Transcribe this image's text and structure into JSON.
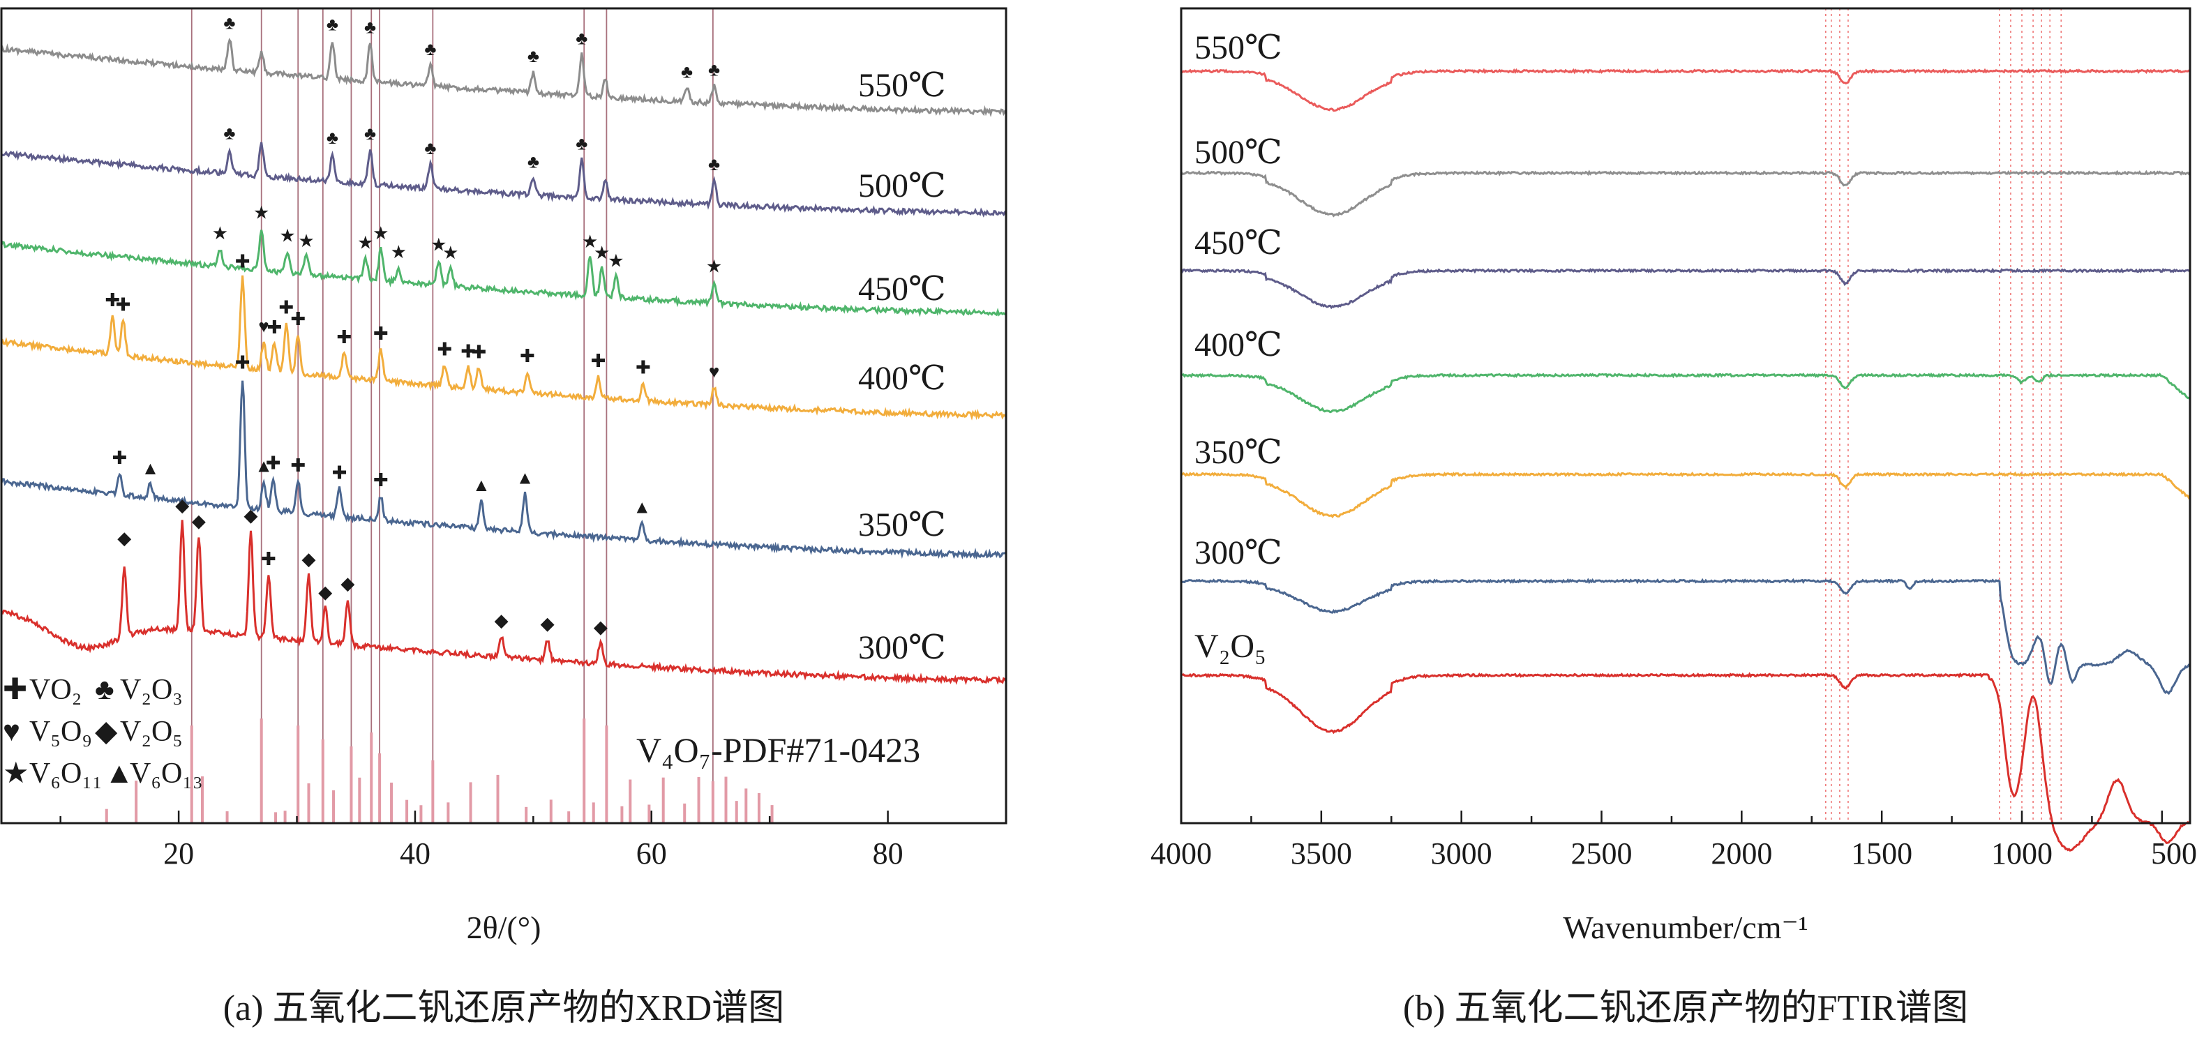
{
  "captions": {
    "a": "(a) 五氧化二钒还原产物的XRD谱图",
    "b": "(b) 五氧化二钒还原产物的FTIR谱图"
  },
  "colors": {
    "550": "#8c8c8c",
    "500": "#5e5c8a",
    "450": "#4fb56b",
    "400": "#f2ad3c",
    "350": "#4a6690",
    "300": "#d9302c",
    "ftir_550": "#ea5b5b",
    "ftir_V2O5": "#d9302c",
    "pdf": "#e29aa6",
    "ref": "#a8707c",
    "band": "#ee7070"
  },
  "legend": {
    "vo2": "VO₂",
    "v2o3": "V₂O₃",
    "v5o9": "V₅O₉",
    "v2o5": "V₂O₅",
    "v6o11": "V₆O₁₁",
    "v6o13": "V₆O₁₃",
    "pdf": "V₄O₇-PDF#71-0423"
  },
  "chart_data": [
    {
      "type": "line",
      "title": "(a) 五氧化二钒还原产物的XRD谱图",
      "xlabel": "2θ/(°)",
      "ylabel": "",
      "xlim": [
        5,
        90
      ],
      "xticks": [
        20,
        40,
        60,
        80
      ],
      "grid": false,
      "reference_pattern": {
        "name": "V₄O₇-PDF#71-0423",
        "positions_2theta": [
          21.1,
          27.0,
          30.1,
          32.2,
          34.6,
          36.3,
          37.0,
          41.5,
          54.3,
          56.2,
          65.2
        ],
        "extra_small_peaks_2theta": [
          13.9,
          16.4,
          22.0,
          24.1,
          28.2,
          29.0,
          31.0,
          33.1,
          35.3,
          38.0,
          39.3,
          40.5,
          42.8,
          44.7,
          47.0,
          49.4,
          51.5,
          53.0,
          55.1,
          57.5,
          58.2,
          59.8,
          61.0,
          62.8,
          64.0,
          66.3,
          67.2,
          68.0,
          69.1,
          70.2
        ]
      },
      "series": [
        {
          "name": "550℃",
          "label": "550℃",
          "peaks_2theta": [
            24.3,
            27.0,
            33.0,
            36.2,
            41.3,
            50.0,
            54.1,
            56.1,
            63.0,
            65.3
          ],
          "markers": [
            {
              "x": 24.3,
              "phase": "V₂O₃",
              "glyph": "♣"
            },
            {
              "x": 33.0,
              "phase": "V₂O₃",
              "glyph": "♣"
            },
            {
              "x": 36.2,
              "phase": "V₂O₃",
              "glyph": "♣"
            },
            {
              "x": 41.3,
              "phase": "V₂O₃",
              "glyph": "♣"
            },
            {
              "x": 50.0,
              "phase": "V₂O₃",
              "glyph": "♣"
            },
            {
              "x": 54.1,
              "phase": "V₂O₃",
              "glyph": "♣"
            },
            {
              "x": 63.0,
              "phase": "V₂O₃",
              "glyph": "♣"
            },
            {
              "x": 65.3,
              "phase": "V₂O₃",
              "glyph": "♣"
            }
          ]
        },
        {
          "name": "500℃",
          "label": "500℃",
          "peaks_2theta": [
            24.3,
            27.0,
            33.0,
            36.2,
            41.3,
            50.0,
            54.1,
            56.1,
            65.3
          ],
          "markers": [
            {
              "x": 24.3,
              "phase": "V₂O₃",
              "glyph": "♣"
            },
            {
              "x": 33.0,
              "phase": "V₂O₃",
              "glyph": "♣"
            },
            {
              "x": 36.2,
              "phase": "V₂O₃",
              "glyph": "♣"
            },
            {
              "x": 41.3,
              "phase": "V₂O₃",
              "glyph": "♣"
            },
            {
              "x": 50.0,
              "phase": "V₂O₃",
              "glyph": "♣"
            },
            {
              "x": 54.1,
              "phase": "V₂O₃",
              "glyph": "♣"
            },
            {
              "x": 65.3,
              "phase": "V₂O₃",
              "glyph": "♣"
            }
          ]
        },
        {
          "name": "450℃",
          "label": "450℃",
          "peaks_2theta": [
            23.5,
            27.0,
            29.2,
            30.8,
            35.8,
            37.1,
            38.6,
            42.0,
            43.0,
            54.8,
            55.8,
            57.0,
            65.3
          ],
          "markers": [
            {
              "x": 23.5,
              "phase": "V₆O₁₁",
              "glyph": "★"
            },
            {
              "x": 27.0,
              "phase": "V₆O₁₁",
              "glyph": "★"
            },
            {
              "x": 29.2,
              "phase": "V₆O₁₁",
              "glyph": "★"
            },
            {
              "x": 30.8,
              "phase": "V₆O₁₁",
              "glyph": "★"
            },
            {
              "x": 35.8,
              "phase": "V₆O₁₁",
              "glyph": "★"
            },
            {
              "x": 37.1,
              "phase": "V₆O₁₁",
              "glyph": "★"
            },
            {
              "x": 38.6,
              "phase": "V₆O₁₁",
              "glyph": "★"
            },
            {
              "x": 42.0,
              "phase": "V₆O₁₁",
              "glyph": "★"
            },
            {
              "x": 43.0,
              "phase": "V₆O₁₁",
              "glyph": "★"
            },
            {
              "x": 54.8,
              "phase": "V₆O₁₁",
              "glyph": "★"
            },
            {
              "x": 55.8,
              "phase": "V₆O₁₁",
              "glyph": "★"
            },
            {
              "x": 57.0,
              "phase": "V₆O₁₁",
              "glyph": "★"
            },
            {
              "x": 65.3,
              "phase": "V₆O₁₁",
              "glyph": "★"
            }
          ]
        },
        {
          "name": "400℃",
          "label": "400℃",
          "peaks_2theta": [
            14.4,
            15.3,
            25.4,
            27.2,
            28.1,
            29.1,
            30.1,
            34.0,
            37.1,
            42.5,
            44.5,
            45.4,
            49.5,
            55.5,
            59.3,
            65.3
          ],
          "markers": [
            {
              "x": 14.4,
              "phase": "VO₂",
              "glyph": "✚"
            },
            {
              "x": 15.3,
              "phase": "VO₂",
              "glyph": "✚"
            },
            {
              "x": 25.4,
              "phase": "VO₂",
              "glyph": "✚"
            },
            {
              "x": 27.2,
              "phase": "V₅O₉",
              "glyph": "♥"
            },
            {
              "x": 28.1,
              "phase": "VO₂",
              "glyph": "✚"
            },
            {
              "x": 29.1,
              "phase": "VO₂",
              "glyph": "✚"
            },
            {
              "x": 30.1,
              "phase": "VO₂",
              "glyph": "✚"
            },
            {
              "x": 34.0,
              "phase": "VO₂",
              "glyph": "✚"
            },
            {
              "x": 37.1,
              "phase": "VO₂",
              "glyph": "✚"
            },
            {
              "x": 42.5,
              "phase": "VO₂",
              "glyph": "✚"
            },
            {
              "x": 44.5,
              "phase": "VO₂",
              "glyph": "✚"
            },
            {
              "x": 45.4,
              "phase": "VO₂",
              "glyph": "✚"
            },
            {
              "x": 49.5,
              "phase": "VO₂",
              "glyph": "✚"
            },
            {
              "x": 55.5,
              "phase": "VO₂",
              "glyph": "✚"
            },
            {
              "x": 59.3,
              "phase": "VO₂",
              "glyph": "✚"
            },
            {
              "x": 65.3,
              "phase": "V₅O₉",
              "glyph": "♥"
            }
          ]
        },
        {
          "name": "350℃",
          "label": "350℃",
          "peaks_2theta": [
            15.0,
            17.6,
            25.4,
            27.2,
            28.0,
            30.1,
            33.6,
            37.1,
            45.6,
            49.3,
            59.2
          ],
          "markers": [
            {
              "x": 15.0,
              "phase": "VO₂",
              "glyph": "✚"
            },
            {
              "x": 17.6,
              "phase": "V₆O₁₃",
              "glyph": "▲"
            },
            {
              "x": 25.4,
              "phase": "VO₂",
              "glyph": "✚"
            },
            {
              "x": 27.2,
              "phase": "V₆O₁₃",
              "glyph": "▲"
            },
            {
              "x": 28.0,
              "phase": "VO₂",
              "glyph": "✚"
            },
            {
              "x": 30.1,
              "phase": "VO₂",
              "glyph": "✚"
            },
            {
              "x": 33.6,
              "phase": "VO₂",
              "glyph": "✚"
            },
            {
              "x": 37.1,
              "phase": "VO₂",
              "glyph": "✚"
            },
            {
              "x": 45.6,
              "phase": "V₆O₁₃",
              "glyph": "▲"
            },
            {
              "x": 49.3,
              "phase": "V₆O₁₃",
              "glyph": "▲"
            },
            {
              "x": 59.2,
              "phase": "V₆O₁₃",
              "glyph": "▲"
            }
          ]
        },
        {
          "name": "300℃",
          "label": "300℃",
          "peaks_2theta": [
            15.4,
            20.3,
            21.7,
            26.1,
            27.6,
            31.0,
            32.4,
            34.3,
            47.3,
            51.2,
            55.7
          ],
          "markers": [
            {
              "x": 15.4,
              "phase": "V₂O₅",
              "glyph": "◆"
            },
            {
              "x": 20.3,
              "phase": "V₂O₅",
              "glyph": "◆"
            },
            {
              "x": 21.7,
              "phase": "V₂O₅",
              "glyph": "◆"
            },
            {
              "x": 26.1,
              "phase": "V₂O₅",
              "glyph": "◆"
            },
            {
              "x": 27.6,
              "phase": "VO₂",
              "glyph": "✚"
            },
            {
              "x": 31.0,
              "phase": "V₂O₅",
              "glyph": "◆"
            },
            {
              "x": 32.4,
              "phase": "V₂O₅",
              "glyph": "◆"
            },
            {
              "x": 34.3,
              "phase": "V₂O₅",
              "glyph": "◆"
            },
            {
              "x": 47.3,
              "phase": "V₂O₅",
              "glyph": "◆"
            },
            {
              "x": 51.2,
              "phase": "V₂O₅",
              "glyph": "◆"
            },
            {
              "x": 55.7,
              "phase": "V₂O₅",
              "glyph": "◆"
            }
          ]
        }
      ]
    },
    {
      "type": "line",
      "title": "(b) 五氧化二钒还原产物的FTIR谱图",
      "xlabel": "Wavenumber/cm⁻¹",
      "ylabel": "",
      "xlim": [
        4000,
        400
      ],
      "xticks": [
        4000,
        3500,
        3000,
        2500,
        2000,
        1500,
        1000,
        500
      ],
      "grid": false,
      "bands_cm-1": [
        1700,
        1680,
        1650,
        1620,
        1080,
        1040,
        1000,
        960,
        930,
        900,
        860
      ],
      "series": [
        {
          "name": "550℃",
          "label": "550℃",
          "features": {
            "OH_band_center": 3450,
            "water_bend": 1630
          }
        },
        {
          "name": "500℃",
          "label": "500℃",
          "features": {
            "OH_band_center": 3450,
            "water_bend": 1630
          }
        },
        {
          "name": "450℃",
          "label": "450℃",
          "features": {
            "OH_band_center": 3450,
            "water_bend": 1630
          }
        },
        {
          "name": "400℃",
          "label": "400℃",
          "features": {
            "OH_band_center": 3450,
            "water_bend": 1630,
            "V_O_bands": [
              1000,
              940
            ]
          }
        },
        {
          "name": "350℃",
          "label": "350℃",
          "features": {
            "OH_band_center": 3450,
            "water_bend": 1630
          }
        },
        {
          "name": "300℃",
          "label": "300℃",
          "features": {
            "OH_band_center": 3450,
            "water_bend": 1630,
            "V_O_bands": [
              1040,
              960,
              900,
              820,
              620,
              480
            ]
          }
        },
        {
          "name": "V₂O₅",
          "label": "V₂O₅",
          "features": {
            "OH_band_center": 3450,
            "water_bend": 1630,
            "V_O_bands": [
              1020,
              830,
              600
            ]
          }
        }
      ]
    }
  ]
}
